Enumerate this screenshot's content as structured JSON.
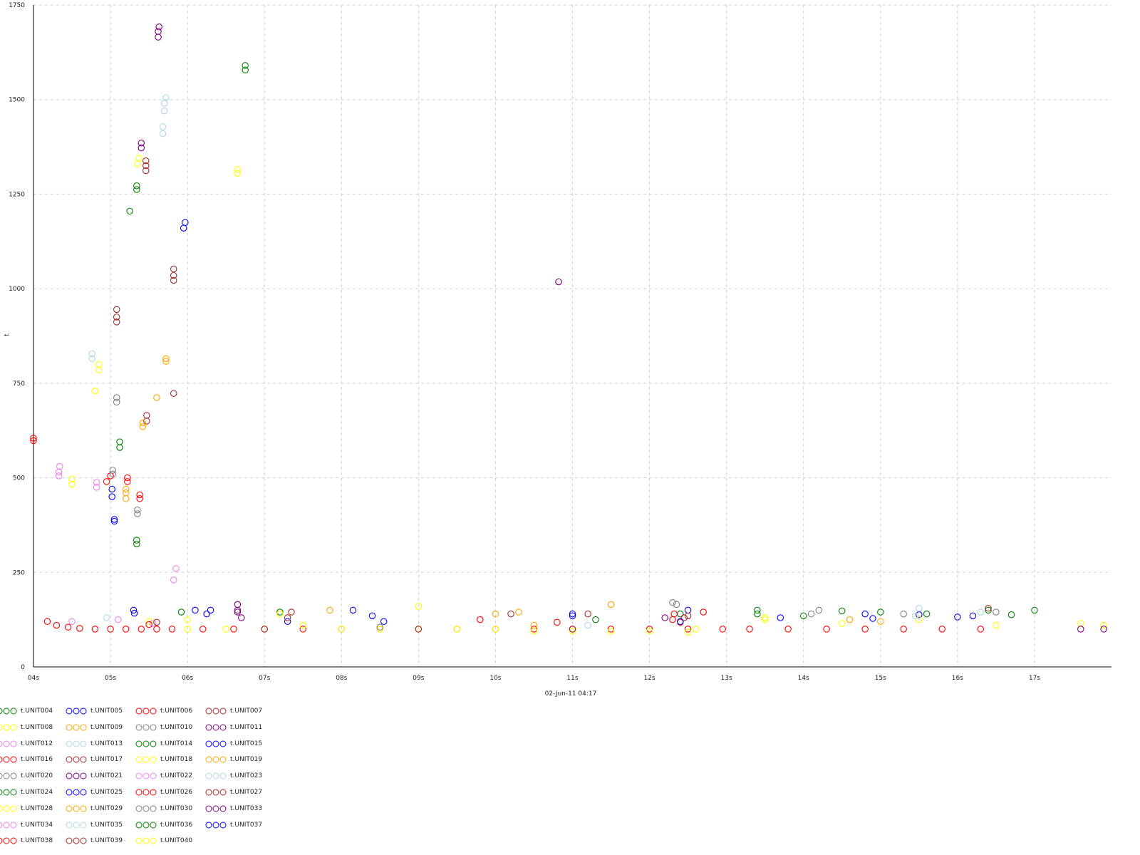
{
  "chart_data": {
    "type": "scatter",
    "title": "",
    "xlabel": "02-Jun-11 04:17",
    "ylabel": "t",
    "xlim": [
      4,
      18
    ],
    "ylim": [
      0,
      1750
    ],
    "x_ticks": [
      "04s",
      "05s",
      "06s",
      "07s",
      "08s",
      "09s",
      "10s",
      "11s",
      "12s",
      "13s",
      "14s",
      "15s",
      "16s",
      "17s"
    ],
    "y_ticks": [
      "0",
      "250",
      "500",
      "750",
      "1000",
      "1250",
      "1500",
      "1750"
    ],
    "grid": true,
    "legend_position": "bottom",
    "marker": "hollow-circle",
    "series": [
      {
        "name": "t.UNIT004",
        "color": "#008000",
        "points": [
          [
            5.12,
            580
          ],
          [
            5.12,
            595
          ],
          [
            5.25,
            1205
          ],
          [
            5.34,
            1262
          ],
          [
            5.34,
            1272
          ],
          [
            5.34,
            325
          ],
          [
            5.34,
            335
          ],
          [
            5.92,
            145
          ],
          [
            6.75,
            1578
          ],
          [
            6.75,
            1590
          ],
          [
            12.4,
            140
          ],
          [
            13.4,
            150
          ],
          [
            14.5,
            148
          ],
          [
            15.6,
            140
          ],
          [
            16.4,
            150
          ],
          [
            17.0,
            150
          ]
        ]
      },
      {
        "name": "t.UNIT005",
        "color": "#0000ff",
        "points": [
          [
            5.02,
            450
          ],
          [
            5.02,
            470
          ],
          [
            5.05,
            390
          ],
          [
            5.05,
            385
          ],
          [
            5.3,
            150
          ],
          [
            5.31,
            142
          ],
          [
            5.95,
            1160
          ],
          [
            5.97,
            1175
          ],
          [
            6.1,
            150
          ],
          [
            6.25,
            140
          ],
          [
            7.3,
            120
          ],
          [
            8.15,
            150
          ],
          [
            8.4,
            135
          ],
          [
            8.55,
            120
          ],
          [
            11.0,
            140
          ],
          [
            12.5,
            150
          ],
          [
            14.8,
            140
          ],
          [
            15.5,
            138
          ],
          [
            16.2,
            135
          ]
        ]
      },
      {
        "name": "t.UNIT006",
        "color": "#ff0000",
        "points": [
          [
            4.0,
            598
          ],
          [
            4.0,
            605
          ],
          [
            4.18,
            120
          ],
          [
            4.3,
            110
          ],
          [
            4.45,
            105
          ],
          [
            4.6,
            102
          ],
          [
            4.8,
            100
          ],
          [
            5.0,
            100
          ],
          [
            5.2,
            100
          ],
          [
            5.4,
            100
          ],
          [
            5.6,
            100
          ],
          [
            5.8,
            100
          ],
          [
            6.2,
            100
          ],
          [
            6.6,
            100
          ],
          [
            7.0,
            100
          ],
          [
            7.5,
            100
          ],
          [
            8.0,
            100
          ],
          [
            8.5,
            100
          ],
          [
            9.0,
            100
          ],
          [
            9.5,
            100
          ],
          [
            10.0,
            100
          ],
          [
            10.5,
            100
          ],
          [
            11.0,
            100
          ],
          [
            11.5,
            100
          ],
          [
            12.0,
            100
          ],
          [
            12.5,
            100
          ],
          [
            12.95,
            100
          ],
          [
            13.3,
            100
          ],
          [
            13.8,
            100
          ],
          [
            14.3,
            100
          ],
          [
            14.8,
            100
          ],
          [
            15.3,
            100
          ],
          [
            15.8,
            100
          ],
          [
            16.3,
            100
          ],
          [
            4.95,
            490
          ],
          [
            5.0,
            505
          ],
          [
            5.22,
            490
          ],
          [
            5.22,
            500
          ],
          [
            5.38,
            455
          ],
          [
            5.38,
            445
          ],
          [
            12.32,
            140
          ],
          [
            12.7,
            145
          ]
        ]
      },
      {
        "name": "t.UNIT007",
        "color": "#a52a2a",
        "points": [
          [
            5.08,
            912
          ],
          [
            5.08,
            925
          ],
          [
            5.08,
            945
          ],
          [
            5.46,
            1312
          ],
          [
            5.46,
            1325
          ],
          [
            5.46,
            1338
          ],
          [
            5.82,
            1022
          ],
          [
            5.82,
            1035
          ],
          [
            5.82,
            1052
          ],
          [
            5.82,
            723
          ],
          [
            5.47,
            650
          ],
          [
            5.47,
            665
          ],
          [
            7.3,
            130
          ],
          [
            10.2,
            140
          ],
          [
            12.5,
            135
          ],
          [
            16.4,
            155
          ]
        ]
      },
      {
        "name": "t.UNIT008",
        "color": "#ffff00",
        "points": [
          [
            4.5,
            483
          ],
          [
            4.5,
            497
          ],
          [
            4.8,
            730
          ],
          [
            4.85,
            785
          ],
          [
            4.85,
            800
          ],
          [
            5.35,
            1330
          ],
          [
            5.37,
            1345
          ],
          [
            6.65,
            1305
          ],
          [
            6.65,
            1315
          ],
          [
            5.5,
            120
          ],
          [
            6.0,
            100
          ],
          [
            6.5,
            100
          ],
          [
            7.0,
            100
          ],
          [
            7.5,
            110
          ],
          [
            8.0,
            100
          ],
          [
            8.5,
            100
          ],
          [
            9.0,
            100
          ],
          [
            9.5,
            100
          ],
          [
            10.0,
            100
          ],
          [
            10.5,
            95
          ],
          [
            11.0,
            95
          ],
          [
            11.5,
            95
          ],
          [
            12.0,
            95
          ],
          [
            12.5,
            92
          ],
          [
            13.5,
            130
          ],
          [
            14.5,
            115
          ],
          [
            15.5,
            125
          ],
          [
            16.5,
            110
          ],
          [
            17.6,
            115
          ],
          [
            17.9,
            110
          ]
        ]
      },
      {
        "name": "t.UNIT009",
        "color": "#ffa500",
        "points": [
          [
            5.2,
            445
          ],
          [
            5.2,
            460
          ],
          [
            5.2,
            470
          ],
          [
            5.42,
            635
          ],
          [
            5.42,
            645
          ],
          [
            5.6,
            712
          ],
          [
            5.72,
            808
          ],
          [
            5.72,
            815
          ],
          [
            7.85,
            150
          ],
          [
            10.0,
            140
          ],
          [
            11.5,
            165
          ],
          [
            14.6,
            125
          ]
        ]
      },
      {
        "name": "t.UNIT010",
        "color": "#808080",
        "points": [
          [
            5.03,
            510
          ],
          [
            5.03,
            520
          ],
          [
            5.08,
            700
          ],
          [
            5.08,
            712
          ],
          [
            5.35,
            405
          ],
          [
            5.35,
            415
          ],
          [
            12.35,
            165
          ],
          [
            14.2,
            150
          ],
          [
            15.3,
            140
          ],
          [
            16.5,
            145
          ]
        ]
      },
      {
        "name": "t.UNIT011",
        "color": "#800080",
        "points": [
          [
            5.62,
            1665
          ],
          [
            5.62,
            1680
          ],
          [
            5.63,
            1692
          ],
          [
            5.4,
            1372
          ],
          [
            5.4,
            1385
          ],
          [
            10.82,
            1018
          ],
          [
            6.65,
            150
          ],
          [
            6.65,
            145
          ],
          [
            17.6,
            100
          ],
          [
            17.9,
            100
          ]
        ]
      },
      {
        "name": "t.UNIT012",
        "color": "#ee82ee",
        "points": [
          [
            4.33,
            505
          ],
          [
            4.33,
            515
          ],
          [
            4.34,
            530
          ],
          [
            4.82,
            475
          ],
          [
            4.82,
            488
          ],
          [
            5.85,
            260
          ],
          [
            5.82,
            230
          ],
          [
            4.5,
            120
          ]
        ]
      },
      {
        "name": "t.UNIT013",
        "color": "#add8e6",
        "points": [
          [
            4.76,
            815
          ],
          [
            4.76,
            828
          ],
          [
            5.7,
            1470
          ],
          [
            5.7,
            1490
          ],
          [
            5.72,
            1505
          ],
          [
            5.68,
            1428
          ],
          [
            5.68,
            1410
          ],
          [
            4.95,
            130
          ],
          [
            15.5,
            155
          ],
          [
            16.3,
            145
          ]
        ]
      },
      {
        "name": "t.UNIT014",
        "color": "#008000",
        "points": [
          [
            13.4,
            140
          ],
          [
            14.0,
            135
          ],
          [
            15.0,
            145
          ],
          [
            16.7,
            138
          ]
        ]
      },
      {
        "name": "t.UNIT015",
        "color": "#0000ff",
        "points": [
          [
            13.7,
            130
          ],
          [
            14.9,
            128
          ],
          [
            16.0,
            132
          ]
        ]
      },
      {
        "name": "t.UNIT016",
        "color": "#ff0000",
        "points": [
          [
            12.3,
            125
          ],
          [
            12.4,
            118
          ]
        ]
      },
      {
        "name": "t.UNIT017",
        "color": "#a52a2a",
        "points": [
          [
            7.0,
            100
          ],
          [
            9.0,
            100
          ],
          [
            11.0,
            100
          ],
          [
            12.45,
            130
          ]
        ]
      },
      {
        "name": "t.UNIT018",
        "color": "#ffff00",
        "points": [
          [
            9.0,
            160
          ],
          [
            12.6,
            100
          ]
        ]
      },
      {
        "name": "t.UNIT019",
        "color": "#ffa500",
        "points": [
          [
            10.5,
            110
          ],
          [
            15.0,
            120
          ]
        ]
      },
      {
        "name": "t.UNIT020",
        "color": "#808080",
        "points": [
          [
            8.5,
            105
          ],
          [
            14.1,
            140
          ]
        ]
      },
      {
        "name": "t.UNIT021",
        "color": "#800080",
        "points": [
          [
            6.7,
            130
          ],
          [
            12.2,
            130
          ]
        ]
      },
      {
        "name": "t.UNIT022",
        "color": "#ee82ee",
        "points": [
          [
            5.55,
            115
          ]
        ]
      },
      {
        "name": "t.UNIT023",
        "color": "#add8e6",
        "points": [
          [
            15.45,
            135
          ]
        ]
      },
      {
        "name": "t.UNIT024",
        "color": "#008000",
        "points": [
          [
            7.2,
            145
          ]
        ]
      },
      {
        "name": "t.UNIT025",
        "color": "#0000ff",
        "points": [
          [
            6.3,
            150
          ],
          [
            11.0,
            135
          ]
        ]
      },
      {
        "name": "t.UNIT026",
        "color": "#ff0000",
        "points": [
          [
            9.8,
            125
          ],
          [
            10.8,
            118
          ]
        ]
      },
      {
        "name": "t.UNIT027",
        "color": "#a52a2a",
        "points": [
          [
            7.35,
            145
          ],
          [
            11.2,
            140
          ]
        ]
      },
      {
        "name": "t.UNIT028",
        "color": "#ffff00",
        "points": [
          [
            7.2,
            140
          ],
          [
            13.5,
            125
          ]
        ]
      },
      {
        "name": "t.UNIT029",
        "color": "#ffa500",
        "points": [
          [
            10.3,
            145
          ]
        ]
      },
      {
        "name": "t.UNIT030",
        "color": "#808080",
        "points": [
          [
            12.3,
            170
          ]
        ]
      },
      {
        "name": "t.UNIT033",
        "color": "#800080",
        "points": [
          [
            6.65,
            165
          ]
        ]
      },
      {
        "name": "t.UNIT034",
        "color": "#ee82ee",
        "points": [
          [
            5.1,
            125
          ]
        ]
      },
      {
        "name": "t.UNIT035",
        "color": "#add8e6",
        "points": [
          [
            11.2,
            110
          ]
        ]
      },
      {
        "name": "t.UNIT036",
        "color": "#008000",
        "points": [
          [
            11.3,
            125
          ]
        ]
      },
      {
        "name": "t.UNIT037",
        "color": "#0000ff",
        "points": [
          [
            12.4,
            120
          ]
        ]
      },
      {
        "name": "t.UNIT038",
        "color": "#ff0000",
        "points": [
          [
            5.5,
            112
          ]
        ]
      },
      {
        "name": "t.UNIT039",
        "color": "#a52a2a",
        "points": [
          [
            5.6,
            118
          ]
        ]
      },
      {
        "name": "t.UNIT040",
        "color": "#ffff00",
        "points": [
          [
            6.0,
            125
          ]
        ]
      }
    ]
  }
}
